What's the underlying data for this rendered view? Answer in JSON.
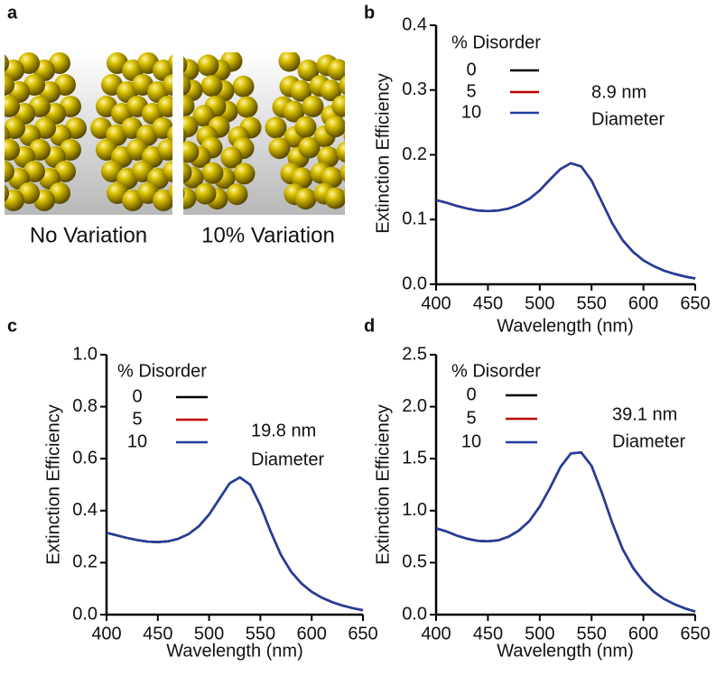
{
  "panel_a": {
    "label": "a",
    "captions": [
      "No Variation",
      "10% Variation"
    ]
  },
  "chart_data": [
    {
      "type": "line",
      "panel": "b",
      "xlabel": "Wavelength (nm)",
      "ylabel": "Extinction Efficiency",
      "legend_title": "% Disorder",
      "annotation": [
        "8.9 nm",
        "Diameter"
      ],
      "x": [
        400,
        410,
        420,
        430,
        440,
        450,
        460,
        470,
        480,
        490,
        500,
        510,
        520,
        530,
        540,
        550,
        560,
        570,
        580,
        590,
        600,
        610,
        620,
        630,
        640,
        650
      ],
      "series": [
        {
          "name": "0",
          "color": "#000000",
          "values": [
            0.13,
            0.126,
            0.121,
            0.117,
            0.114,
            0.113,
            0.114,
            0.117,
            0.123,
            0.132,
            0.145,
            0.162,
            0.178,
            0.187,
            0.182,
            0.16,
            0.127,
            0.094,
            0.068,
            0.05,
            0.037,
            0.028,
            0.021,
            0.016,
            0.012,
            0.009
          ]
        },
        {
          "name": "5",
          "color": "#c00000",
          "values": [
            0.13,
            0.126,
            0.121,
            0.117,
            0.114,
            0.113,
            0.114,
            0.117,
            0.123,
            0.132,
            0.145,
            0.162,
            0.178,
            0.187,
            0.182,
            0.16,
            0.127,
            0.094,
            0.068,
            0.05,
            0.037,
            0.028,
            0.021,
            0.016,
            0.012,
            0.009
          ]
        },
        {
          "name": "10",
          "color": "#1f3fa0",
          "values": [
            0.13,
            0.126,
            0.121,
            0.117,
            0.114,
            0.113,
            0.114,
            0.117,
            0.123,
            0.132,
            0.145,
            0.162,
            0.178,
            0.187,
            0.182,
            0.16,
            0.127,
            0.094,
            0.068,
            0.05,
            0.037,
            0.028,
            0.021,
            0.016,
            0.012,
            0.009
          ]
        }
      ],
      "xlim": [
        400,
        650
      ],
      "xticks": [
        400,
        450,
        500,
        550,
        600,
        650
      ],
      "ylim": [
        0,
        0.4
      ],
      "yticks": [
        {
          "value": 0,
          "label": "0.0"
        },
        0.1,
        0.2,
        0.3,
        0.4
      ]
    },
    {
      "type": "line",
      "panel": "c",
      "xlabel": "Wavelength (nm)",
      "ylabel": "Extinction Efficiency",
      "legend_title": "% Disorder",
      "annotation": [
        "19.8 nm",
        "Diameter"
      ],
      "x": [
        400,
        410,
        420,
        430,
        440,
        450,
        460,
        470,
        480,
        490,
        500,
        510,
        520,
        530,
        540,
        550,
        560,
        570,
        580,
        590,
        600,
        610,
        620,
        630,
        640,
        650
      ],
      "series": [
        {
          "name": "0",
          "color": "#000000",
          "values": [
            0.315,
            0.305,
            0.295,
            0.287,
            0.281,
            0.279,
            0.282,
            0.292,
            0.31,
            0.34,
            0.385,
            0.445,
            0.505,
            0.528,
            0.5,
            0.42,
            0.32,
            0.23,
            0.165,
            0.12,
            0.088,
            0.065,
            0.048,
            0.035,
            0.025,
            0.017
          ]
        },
        {
          "name": "5",
          "color": "#c00000",
          "values": [
            0.315,
            0.305,
            0.295,
            0.287,
            0.281,
            0.279,
            0.282,
            0.292,
            0.31,
            0.34,
            0.385,
            0.445,
            0.505,
            0.528,
            0.5,
            0.42,
            0.32,
            0.23,
            0.165,
            0.12,
            0.088,
            0.065,
            0.048,
            0.035,
            0.025,
            0.017
          ]
        },
        {
          "name": "10",
          "color": "#1f3fa0",
          "values": [
            0.315,
            0.305,
            0.295,
            0.287,
            0.281,
            0.279,
            0.282,
            0.292,
            0.31,
            0.34,
            0.385,
            0.445,
            0.505,
            0.528,
            0.5,
            0.42,
            0.32,
            0.23,
            0.165,
            0.12,
            0.088,
            0.065,
            0.048,
            0.035,
            0.025,
            0.017
          ]
        }
      ],
      "xlim": [
        400,
        650
      ],
      "xticks": [
        400,
        450,
        500,
        550,
        600,
        650
      ],
      "ylim": [
        0,
        1
      ],
      "yticks": [
        {
          "value": 0,
          "label": "0.0"
        },
        0.2,
        0.4,
        0.6,
        0.8,
        {
          "value": 1,
          "label": "1.0"
        }
      ]
    },
    {
      "type": "line",
      "panel": "d",
      "xlabel": "Wavelength (nm)",
      "ylabel": "Extinction Efficiency",
      "legend_title": "% Disorder",
      "annotation": [
        "39.1 nm",
        "Diameter"
      ],
      "x": [
        400,
        410,
        420,
        430,
        440,
        450,
        460,
        470,
        480,
        490,
        500,
        510,
        520,
        530,
        540,
        550,
        560,
        570,
        580,
        590,
        600,
        610,
        620,
        630,
        640,
        650
      ],
      "series": [
        {
          "name": "0",
          "color": "#000000",
          "values": [
            0.83,
            0.8,
            0.76,
            0.73,
            0.71,
            0.705,
            0.715,
            0.75,
            0.81,
            0.9,
            1.04,
            1.22,
            1.42,
            1.55,
            1.56,
            1.43,
            1.17,
            0.88,
            0.63,
            0.45,
            0.32,
            0.22,
            0.15,
            0.1,
            0.06,
            0.03
          ]
        },
        {
          "name": "5",
          "color": "#c00000",
          "values": [
            0.83,
            0.8,
            0.76,
            0.73,
            0.71,
            0.705,
            0.715,
            0.75,
            0.81,
            0.9,
            1.04,
            1.22,
            1.42,
            1.55,
            1.56,
            1.43,
            1.17,
            0.88,
            0.63,
            0.45,
            0.32,
            0.22,
            0.15,
            0.1,
            0.06,
            0.03
          ]
        },
        {
          "name": "10",
          "color": "#1f3fa0",
          "values": [
            0.83,
            0.8,
            0.76,
            0.73,
            0.71,
            0.705,
            0.715,
            0.75,
            0.81,
            0.9,
            1.04,
            1.22,
            1.42,
            1.55,
            1.56,
            1.43,
            1.17,
            0.88,
            0.63,
            0.45,
            0.32,
            0.22,
            0.15,
            0.1,
            0.06,
            0.03
          ]
        }
      ],
      "xlim": [
        400,
        650
      ],
      "xticks": [
        400,
        450,
        500,
        550,
        600,
        650
      ],
      "ylim": [
        0,
        2.5
      ],
      "yticks": [
        {
          "value": 0,
          "label": "0.0"
        },
        0.5,
        {
          "value": 1,
          "label": "1.0"
        },
        1.5,
        {
          "value": 2,
          "label": "2.0"
        },
        2.5
      ]
    }
  ]
}
